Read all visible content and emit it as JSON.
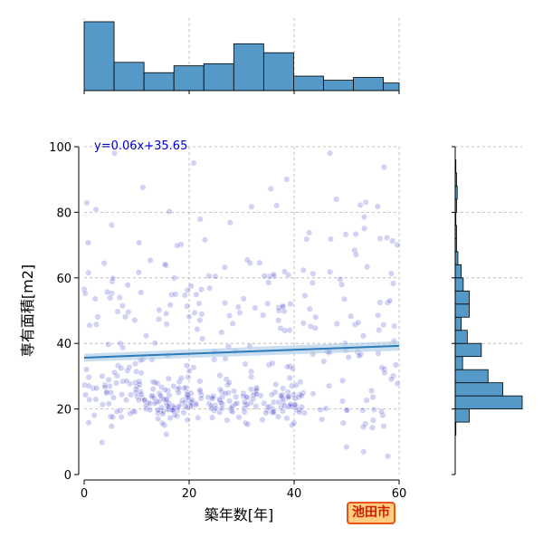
{
  "chart_data": {
    "type": "scatter",
    "subtype": "jointplot with marginal histograms and regression line",
    "xlabel": "築年数[年]",
    "ylabel": "専有面積[m2]",
    "xlim": [
      0,
      60
    ],
    "ylim": [
      0,
      100
    ],
    "xticks": [
      0,
      20,
      40,
      60
    ],
    "yticks": [
      0,
      20,
      40,
      60,
      80,
      100
    ],
    "grid": true,
    "regression": {
      "label": "y=0.06x+35.65",
      "slope": 0.06,
      "intercept": 35.65,
      "x_range": [
        0,
        60
      ]
    },
    "top_histogram": {
      "bin_edges": [
        0,
        5.7,
        11.4,
        17.1,
        22.8,
        28.5,
        34.2,
        39.9,
        45.6,
        51.3,
        57.0,
        60
      ],
      "relative_heights": [
        1.0,
        0.41,
        0.26,
        0.36,
        0.39,
        0.68,
        0.55,
        0.21,
        0.15,
        0.19,
        0.11
      ]
    },
    "right_histogram": {
      "bin_edges": [
        12,
        16,
        20,
        24,
        28,
        32,
        36,
        40,
        44,
        48,
        52,
        56,
        60,
        64,
        68,
        72,
        76,
        80,
        84,
        88,
        92,
        96
      ],
      "relative_heights": [
        0.01,
        0.21,
        1.0,
        0.71,
        0.49,
        0.11,
        0.39,
        0.18,
        0.09,
        0.21,
        0.21,
        0.12,
        0.09,
        0.04,
        0.02,
        0.02,
        0.01,
        0.02,
        0.03,
        0.02,
        0.01
      ]
    },
    "colors": {
      "points": "#3333cc",
      "regression_line": "#2b7bba",
      "confidence_band": "#a6c8e6",
      "histogram_fill": "#5499c7",
      "histogram_edge": "#000000",
      "grid": "#b0b0b0"
    },
    "point_clusters": [
      {
        "x_range": [
          0,
          20
        ],
        "y_center": 24,
        "y_spread": 4,
        "count": 90
      },
      {
        "x_range": [
          14,
          42
        ],
        "y_center": 22,
        "y_spread": 3,
        "count": 140
      },
      {
        "x_range": [
          0,
          60
        ],
        "y_center": 28,
        "y_spread": 8,
        "count": 60
      },
      {
        "x_range": [
          0,
          60
        ],
        "y_center": 50,
        "y_spread": 12,
        "count": 150
      },
      {
        "x_range": [
          0,
          60
        ],
        "y_center": 80,
        "y_spread": 10,
        "count": 30
      },
      {
        "x_range": [
          48,
          58
        ],
        "y_center": 12,
        "y_spread": 6,
        "count": 10
      }
    ]
  },
  "badge": {
    "city": "池田市"
  }
}
